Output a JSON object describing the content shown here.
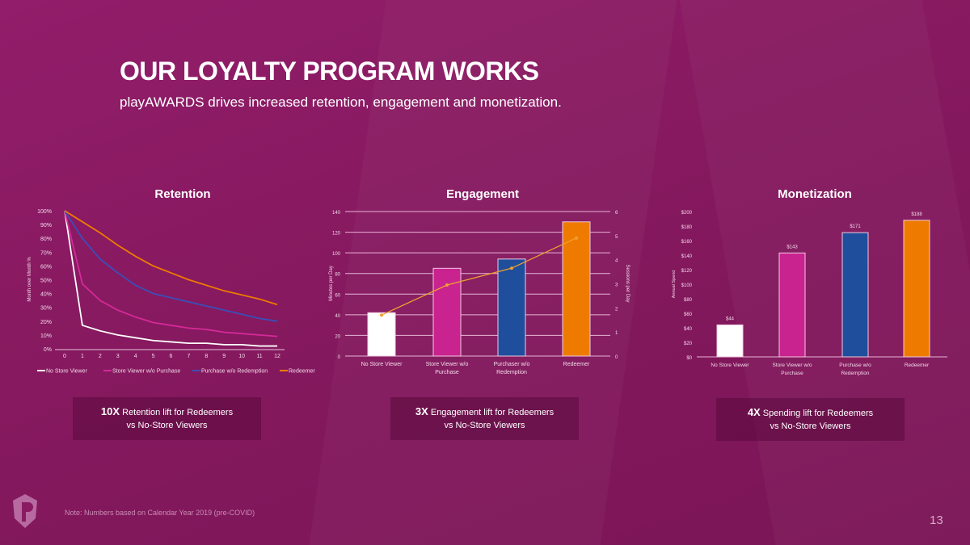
{
  "header": {
    "title": "OUR LOYALTY PROGRAM WORKS",
    "subtitle": "playAWARDS drives increased retention, engagement and monetization."
  },
  "colors": {
    "no_store_viewer": "#ffffff",
    "store_viewer": "#c9238f",
    "purchaser": "#1f4e9c",
    "redeemer": "#ee7b00",
    "sessions_line": "#f0a030"
  },
  "chart_data": [
    {
      "type": "line",
      "title": "Retention",
      "ylabel": "Month over Month %",
      "ylim": [
        0,
        100
      ],
      "yticks": [
        "0%",
        "10%",
        "20%",
        "30%",
        "40%",
        "50%",
        "60%",
        "70%",
        "80%",
        "90%",
        "100%"
      ],
      "x": [
        "0",
        "1",
        "2",
        "3",
        "4",
        "5",
        "6",
        "7",
        "8",
        "9",
        "10",
        "11",
        "12"
      ],
      "legend": "bottom",
      "grid": false,
      "series": [
        {
          "name": "No Store Viewer",
          "color": "#ffffff",
          "values": [
            100,
            17,
            13,
            10,
            8,
            6,
            5,
            4,
            4,
            3,
            3,
            2,
            2
          ]
        },
        {
          "name": "Store Viewer w/o Purchase",
          "color": "#d42a98",
          "values": [
            100,
            47,
            35,
            28,
            23,
            19,
            17,
            15,
            14,
            12,
            11,
            10,
            9
          ]
        },
        {
          "name": "Purchase w/o Redemption",
          "color": "#3a4fb8",
          "values": [
            100,
            80,
            65,
            55,
            46,
            40,
            37,
            34,
            31,
            28,
            25,
            22,
            20
          ]
        },
        {
          "name": "Redeemer",
          "color": "#ee7b00",
          "values": [
            100,
            92,
            84,
            75,
            67,
            60,
            55,
            50,
            46,
            42,
            39,
            36,
            32
          ]
        }
      ]
    },
    {
      "type": "bar",
      "title": "Engagement",
      "ylabel": "Minutes per Day",
      "y2label": "Sessions per Day",
      "ylim": [
        0,
        140
      ],
      "y2lim": [
        0,
        6
      ],
      "grid": true,
      "yticks": [
        "0",
        "20",
        "40",
        "60",
        "80",
        "100",
        "120",
        "140"
      ],
      "y2ticks": [
        "0",
        "1",
        "2",
        "3",
        "4",
        "5",
        "6"
      ],
      "categories": [
        "No Store Viewer",
        "Store Viewer w/o Purchase",
        "Purchaser w/o Redemption",
        "Redeemer"
      ],
      "values": [
        42,
        85,
        94,
        130
      ],
      "bar_colors": [
        "#ffffff",
        "#c9238f",
        "#1f4e9c",
        "#ee7b00"
      ],
      "line_values": [
        1.7,
        2.95,
        3.65,
        4.9
      ]
    },
    {
      "type": "bar",
      "title": "Monetization",
      "ylabel": "Annual Spend",
      "ylim": [
        0,
        200
      ],
      "grid": false,
      "yticks": [
        "$0",
        "$20",
        "$40",
        "$60",
        "$80",
        "$100",
        "$120",
        "$140",
        "$160",
        "$180",
        "$200"
      ],
      "categories": [
        "No Store Viewer",
        "Store Viewer w/o Purchase",
        "Purchase w/o Redemption",
        "Redeemer"
      ],
      "values": [
        44,
        143,
        171,
        188
      ],
      "data_labels": [
        "$44",
        "$143",
        "$171",
        "$188"
      ],
      "bar_colors": [
        "#ffffff",
        "#c9238f",
        "#1f4e9c",
        "#ee7b00"
      ]
    }
  ],
  "callouts": [
    {
      "bold": "10X",
      "text": " Retention  lift for Redeemers",
      "line2": "vs No-Store  Viewers"
    },
    {
      "bold": "3X",
      "text": " Engagement  lift for Redeemers",
      "line2": "vs No-Store  Viewers"
    },
    {
      "bold": "4X",
      "text": " Spending lift for Redeemers",
      "line2": "vs No-Store  Viewers"
    }
  ],
  "footer": {
    "note": "Note: Numbers based on Calendar Year 2019 (pre-COVID)",
    "page": "13"
  }
}
